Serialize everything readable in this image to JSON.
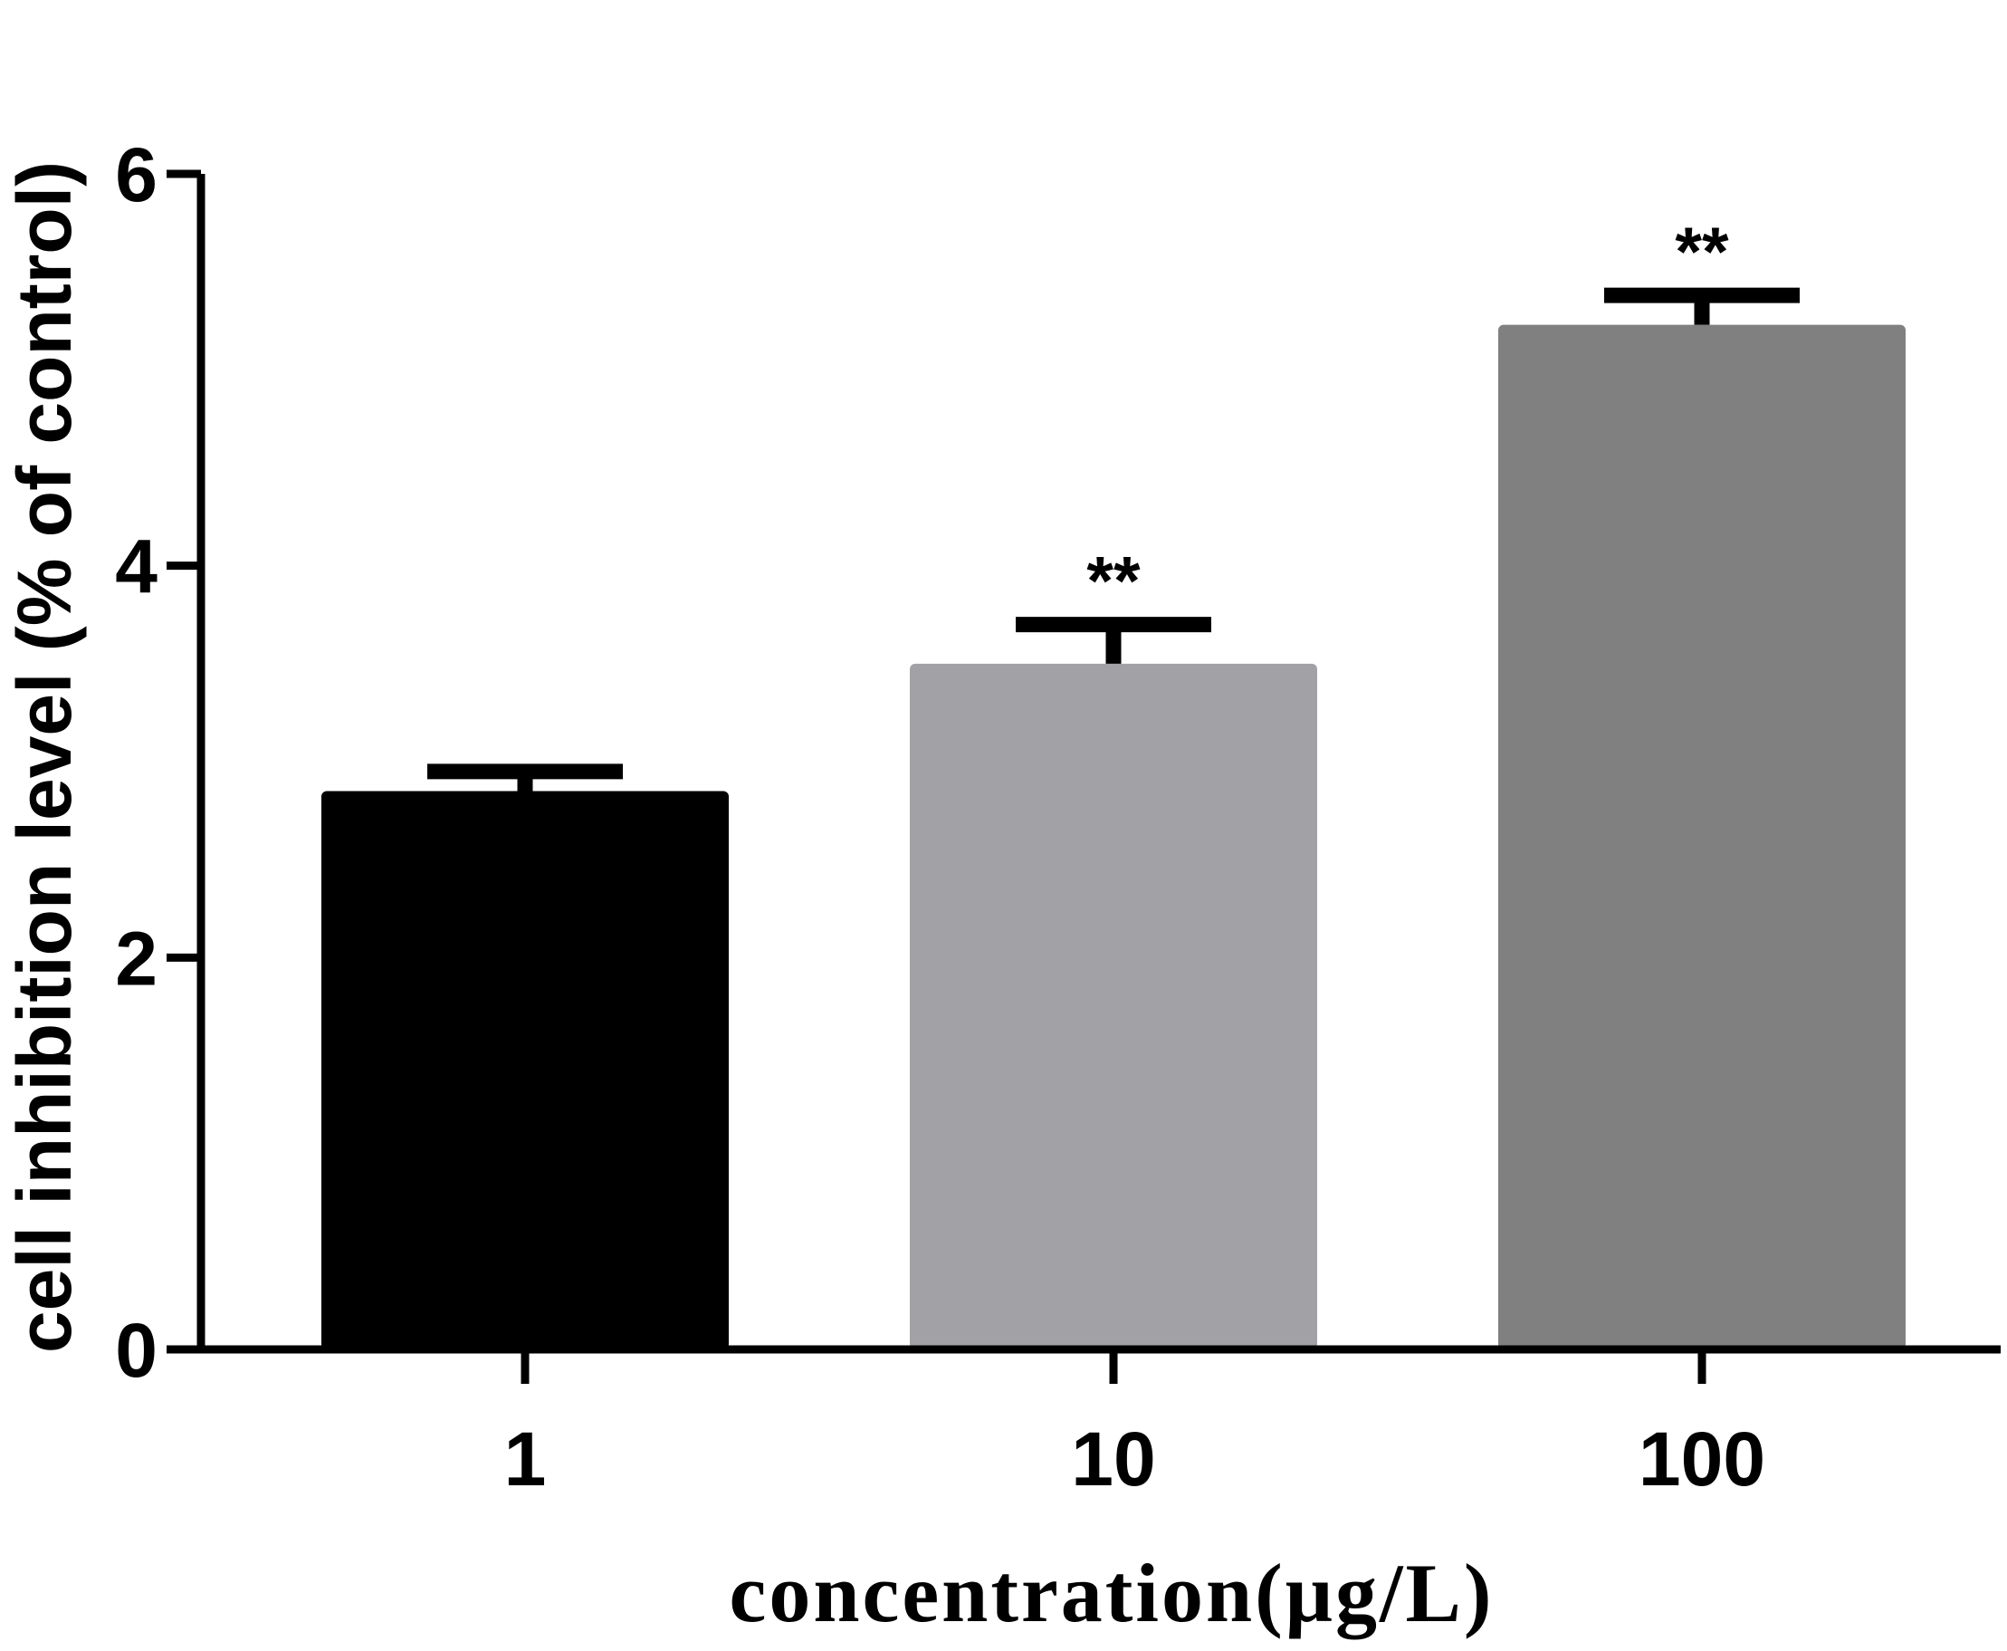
{
  "chart_data": {
    "type": "bar",
    "categories": [
      "1",
      "10",
      "100"
    ],
    "values": [
      2.85,
      3.5,
      5.23
    ],
    "errors": [
      0.1,
      0.2,
      0.15
    ],
    "annotations": [
      "",
      "**",
      "**"
    ],
    "colors": [
      "#000000",
      "#a2a1a5",
      "#808080"
    ],
    "title": "",
    "xlabel": "concentration(μg/L)",
    "ylabel": "cell inhibition level (% of control)",
    "ylim": [
      0,
      6
    ],
    "yticks": [
      "0",
      "2",
      "4",
      "6"
    ],
    "grid": false,
    "legend": "none"
  }
}
